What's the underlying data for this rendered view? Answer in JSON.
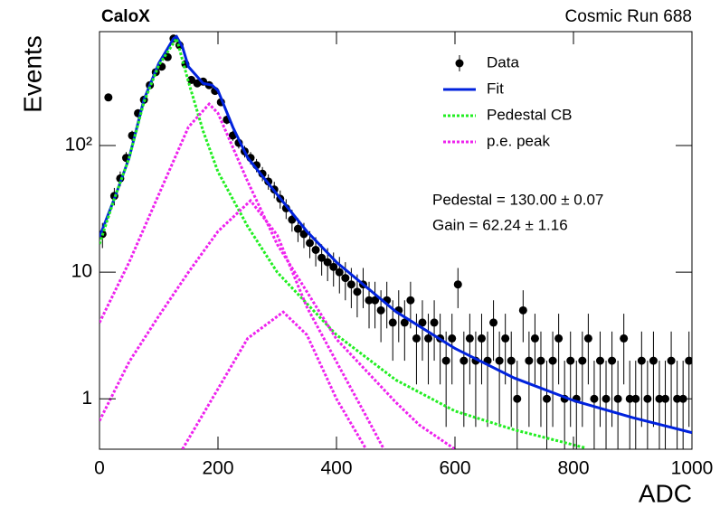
{
  "chart_data": {
    "type": "errorbar",
    "title": "CaloX",
    "subtitle": "Cosmic Run 688",
    "x_label": "ADC",
    "y_label": "Events",
    "log_y": true,
    "xlim": [
      0,
      1000
    ],
    "ylim": [
      0.4,
      794
    ],
    "xticks": [
      0,
      200,
      400,
      600,
      800,
      1000
    ],
    "yticks": [
      1,
      10,
      {
        "value": 100,
        "label": "10²"
      }
    ],
    "legend": "top-right",
    "annotations": [
      "Pedestal = 130.00 ± 0.07",
      "Gain = 62.24 ± 1.16"
    ],
    "series": [
      {
        "name": "Data",
        "color": "#000000",
        "style": "markers",
        "x": [
          5,
          15,
          25,
          35,
          45,
          55,
          65,
          75,
          85,
          95,
          105,
          115,
          125,
          135,
          145,
          155,
          165,
          175,
          185,
          195,
          205,
          215,
          225,
          235,
          245,
          255,
          265,
          275,
          285,
          295,
          305,
          315,
          325,
          335,
          345,
          355,
          365,
          375,
          385,
          395,
          405,
          415,
          425,
          435,
          445,
          455,
          465,
          475,
          485,
          495,
          505,
          515,
          525,
          535,
          545,
          555,
          565,
          575,
          585,
          595,
          605,
          615,
          625,
          635,
          645,
          655,
          665,
          675,
          685,
          695,
          705,
          715,
          725,
          735,
          745,
          755,
          765,
          775,
          785,
          795,
          805,
          815,
          825,
          835,
          845,
          855,
          865,
          875,
          885,
          895,
          905,
          915,
          925,
          935,
          945,
          955,
          965,
          975,
          985,
          995
        ],
        "values": [
          20,
          240,
          40,
          55,
          80,
          120,
          180,
          230,
          300,
          380,
          420,
          500,
          700,
          620,
          440,
          330,
          310,
          320,
          300,
          270,
          220,
          160,
          120,
          105,
          90,
          80,
          70,
          60,
          52,
          45,
          38,
          32,
          26,
          22,
          20,
          17,
          15,
          13,
          12,
          11,
          10,
          9,
          8,
          7,
          8,
          6,
          6,
          5,
          6,
          4,
          5,
          4,
          6,
          3,
          4,
          3,
          4,
          3,
          2,
          3,
          8,
          2,
          3,
          2,
          3,
          2,
          4,
          2,
          3,
          2,
          1,
          5,
          2,
          3,
          2,
          1,
          2,
          3,
          1,
          2,
          1,
          2,
          3,
          1,
          2,
          1,
          2,
          1,
          3,
          1,
          1,
          2,
          1,
          2,
          1,
          1,
          2,
          1,
          1,
          2
        ],
        "errors": [
          4.5,
          15.5,
          6.3,
          7.4,
          8.9,
          11,
          13.4,
          15.2,
          17.3,
          19.5,
          20.5,
          22.4,
          26.5,
          24.9,
          21,
          18.2,
          17.6,
          17.9,
          17.3,
          16.4,
          14.8,
          12.6,
          11,
          10.2,
          9.5,
          8.9,
          8.4,
          7.7,
          7.2,
          6.7,
          6.2,
          5.7,
          5.1,
          4.7,
          4.5,
          4.1,
          3.9,
          3.6,
          3.5,
          3.3,
          3.2,
          3,
          2.8,
          2.6,
          2.8,
          2.4,
          2.4,
          2.2,
          2.4,
          2,
          2.2,
          2,
          2.4,
          1.7,
          2,
          1.7,
          2,
          1.7,
          1.4,
          1.7,
          2.8,
          1.4,
          1.7,
          1.4,
          1.7,
          1.4,
          2,
          1.4,
          1.7,
          1.4,
          1,
          2.2,
          1.4,
          1.7,
          1.4,
          1,
          1.4,
          1.7,
          1,
          1.4,
          1,
          1.4,
          1.7,
          1,
          1.4,
          1,
          1.4,
          1,
          1.7,
          1,
          1,
          1.4,
          1,
          1.4,
          1,
          1,
          1.4,
          1,
          1,
          1.4
        ]
      },
      {
        "name": "Fit",
        "color": "#0022dd",
        "style": "solid",
        "x": [
          0,
          25,
          50,
          75,
          100,
          125,
          130,
          140,
          150,
          175,
          190,
          200,
          225,
          250,
          300,
          350,
          400,
          500,
          600,
          700,
          800,
          900,
          1000
        ],
        "values": [
          19,
          38,
          80,
          230,
          445,
          700,
          727,
          600,
          420,
          310,
          300,
          272,
          140,
          80,
          41,
          21,
          12,
          4.9,
          2.5,
          1.46,
          0.97,
          0.71,
          0.54
        ]
      },
      {
        "name": "Pedestal CB",
        "color": "#22ee22",
        "style": "dotted",
        "x": [
          0,
          25,
          50,
          75,
          100,
          130,
          150,
          175,
          200,
          250,
          300,
          400,
          500,
          600,
          700,
          820
        ],
        "values": [
          16.7,
          38,
          80,
          220,
          430,
          700,
          320,
          130,
          62,
          23,
          10,
          3.2,
          1.41,
          0.8,
          0.57,
          0.41
        ]
      },
      {
        "name": "p.e. peak",
        "color": "#ee22ee",
        "style": "dotted",
        "x": [
          0,
          50,
          100,
          150,
          185,
          200,
          250,
          300,
          400,
          500,
          540,
          600
        ],
        "values": [
          4,
          12,
          41,
          140,
          213,
          180,
          52,
          16.6,
          2.96,
          0.94,
          0.62,
          0.4
        ]
      },
      {
        "color": "#ee22ee",
        "style": "dotted",
        "x": [
          0,
          50,
          100,
          150,
          200,
          255,
          300,
          350,
          400,
          450,
          480
        ],
        "values": [
          0.67,
          1.96,
          4.5,
          10,
          21,
          36.7,
          19.6,
          5.3,
          1.96,
          0.73,
          0.4
        ]
      },
      {
        "color": "#ee22ee",
        "style": "dotted",
        "x": [
          140,
          200,
          250,
          310,
          350,
          400,
          450
        ],
        "values": [
          0.4,
          1.2,
          3,
          4.85,
          3.2,
          1.0,
          0.4
        ]
      }
    ]
  }
}
